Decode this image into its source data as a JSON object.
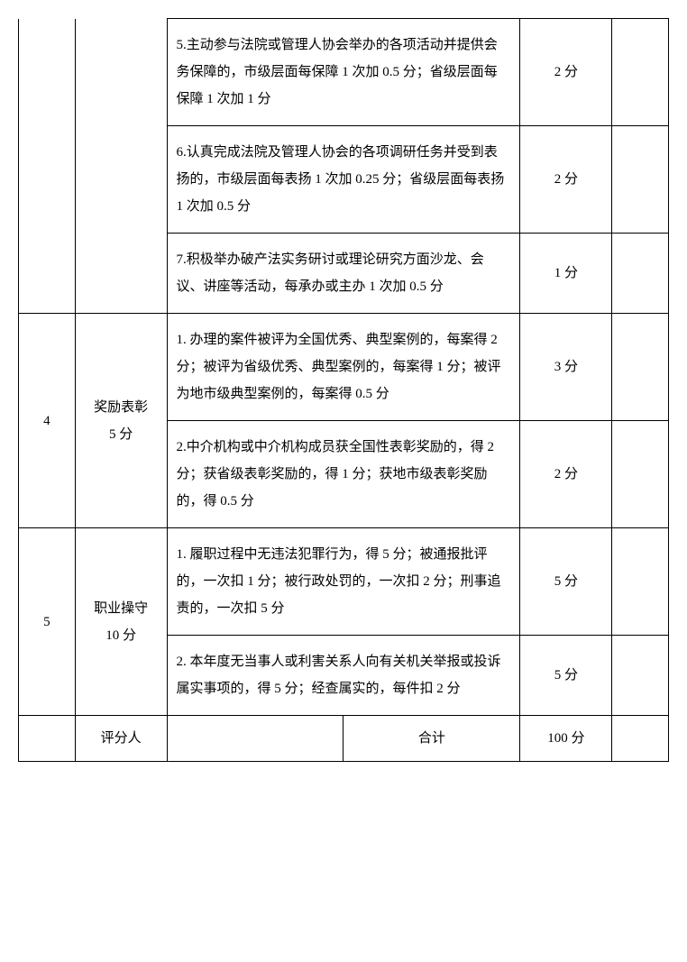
{
  "table": {
    "rows": [
      {
        "num": "",
        "category": "",
        "desc": "5.主动参与法院或管理人协会举办的各项活动并提供会务保障的，市级层面每保障 1 次加 0.5 分；省级层面每保障 1 次加 1 分",
        "score": "2 分"
      },
      {
        "desc": "6.认真完成法院及管理人协会的各项调研任务并受到表扬的，市级层面每表扬 1 次加 0.25 分；省级层面每表扬 1 次加 0.5 分",
        "score": "2 分"
      },
      {
        "desc": "7.积极举办破产法实务研讨或理论研究方面沙龙、会议、讲座等活动，每承办或主办 1 次加 0.5 分",
        "score": "1 分"
      },
      {
        "num": "4",
        "category": "奖励表彰\n5 分",
        "desc": "1. 办理的案件被评为全国优秀、典型案例的，每案得 2 分；被评为省级优秀、典型案例的，每案得 1 分；被评为地市级典型案例的，每案得 0.5 分",
        "score": "3 分"
      },
      {
        "desc": "2.中介机构或中介机构成员获全国性表彰奖励的，得 2 分；获省级表彰奖励的，得 1 分；获地市级表彰奖励的，得 0.5 分",
        "score": "2 分"
      },
      {
        "num": "5",
        "category": "职业操守\n10 分",
        "desc": "1. 履职过程中无违法犯罪行为，得 5 分；被通报批评的，一次扣 1 分；被行政处罚的，一次扣 2 分；刑事追责的，一次扣 5 分",
        "score": "5 分"
      },
      {
        "desc": "2. 本年度无当事人或利害关系人向有关机关举报或投诉属实事项的，得 5 分；经查属实的，每件扣 2 分",
        "score": "5 分"
      }
    ],
    "footer": {
      "reviewer": "评分人",
      "total_label": "合计",
      "total_score": "100 分"
    }
  }
}
